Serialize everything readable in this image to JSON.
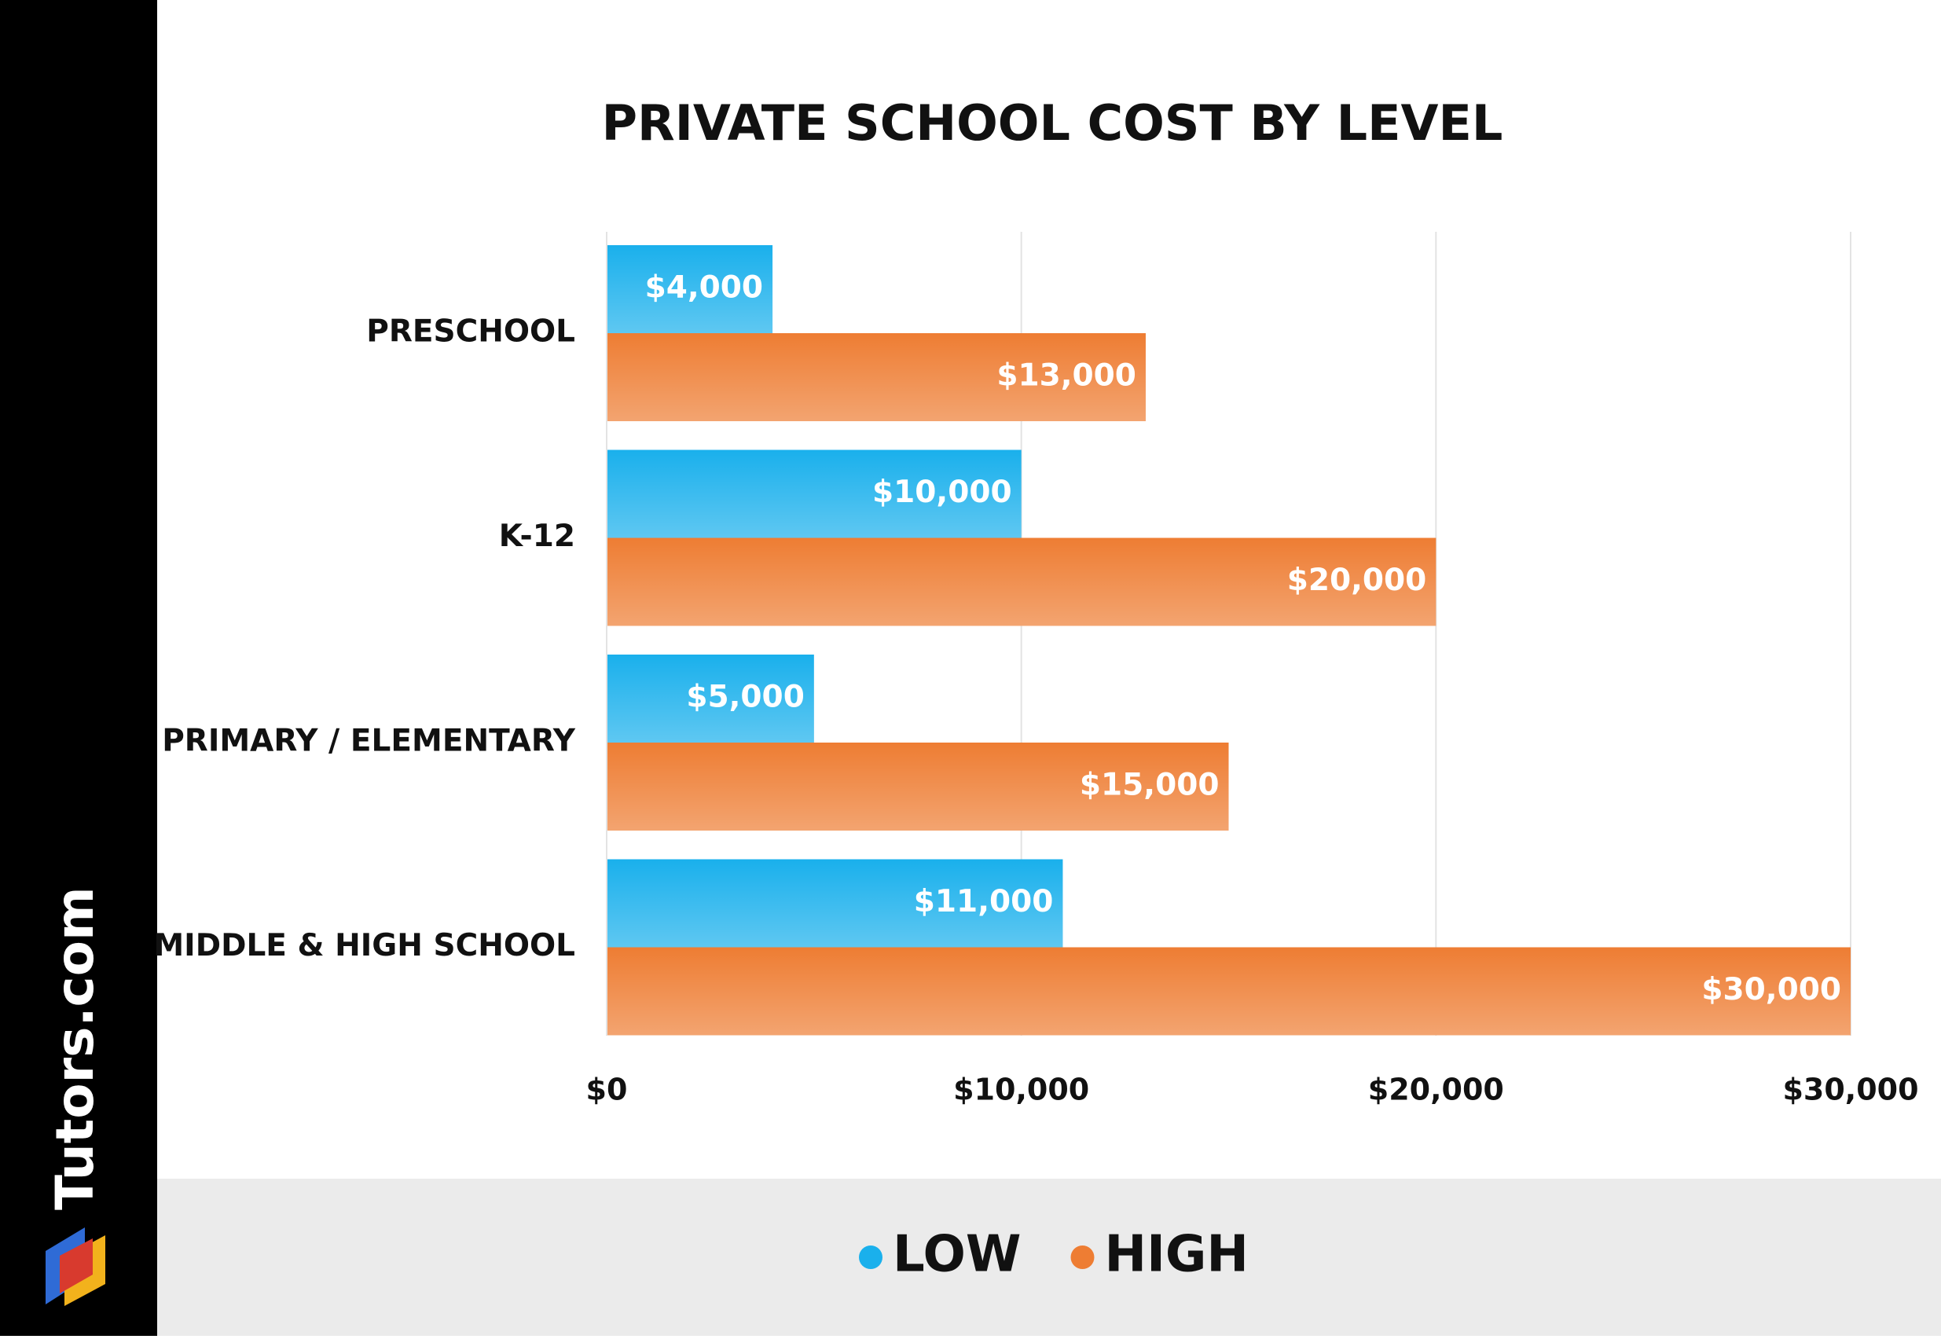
{
  "brand": "Tutors.com",
  "chart_data": {
    "type": "bar",
    "orientation": "horizontal",
    "title": "PRIVATE SCHOOL COST BY LEVEL",
    "categories": [
      "PRESCHOOL",
      "K-12",
      "PRIMARY / ELEMENTARY",
      "MIDDLE & HIGH SCHOOL"
    ],
    "series": [
      {
        "name": "LOW",
        "color": "#1ab0ec",
        "values": [
          4000,
          10000,
          5000,
          11000
        ],
        "value_labels": [
          "$4,000",
          "$10,000",
          "$5,000",
          "$11,000"
        ]
      },
      {
        "name": "HIGH",
        "color": "#ee7d33",
        "values": [
          13000,
          20000,
          15000,
          30000
        ],
        "value_labels": [
          "$13,000",
          "$20,000",
          "$15,000",
          "$30,000"
        ]
      }
    ],
    "xlim": [
      0,
      30000
    ],
    "xticks": [
      {
        "value": 0,
        "label": "$0"
      },
      {
        "value": 10000,
        "label": "$10,000"
      },
      {
        "value": 20000,
        "label": "$20,000"
      },
      {
        "value": 30000,
        "label": "$30,000"
      }
    ],
    "grid": true,
    "legend": "bottom"
  }
}
